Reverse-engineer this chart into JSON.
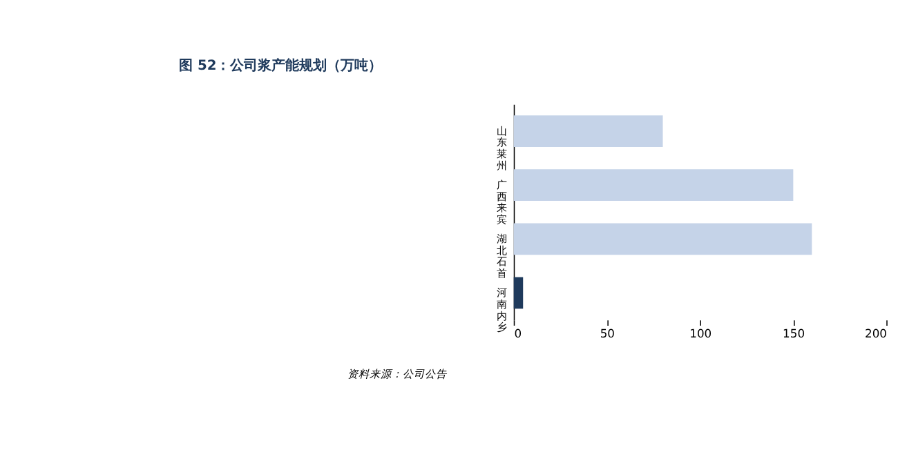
{
  "chart_data": {
    "type": "bar",
    "orientation": "horizontal",
    "title": "图 52：公司浆产能规划（万吨）",
    "categories": [
      "山东莱州",
      "广西来宾",
      "湖北石首",
      "河南内乡"
    ],
    "values": [
      80,
      150,
      160,
      5
    ],
    "colors": [
      "#c5d3e8",
      "#c5d3e8",
      "#c5d3e8",
      "#1f3a5c"
    ],
    "xlim": [
      0,
      200
    ],
    "xticks": [
      0,
      50,
      100,
      150,
      200
    ],
    "grid": false,
    "legend": false,
    "annotations": [
      "资料来源：公司公告"
    ]
  }
}
